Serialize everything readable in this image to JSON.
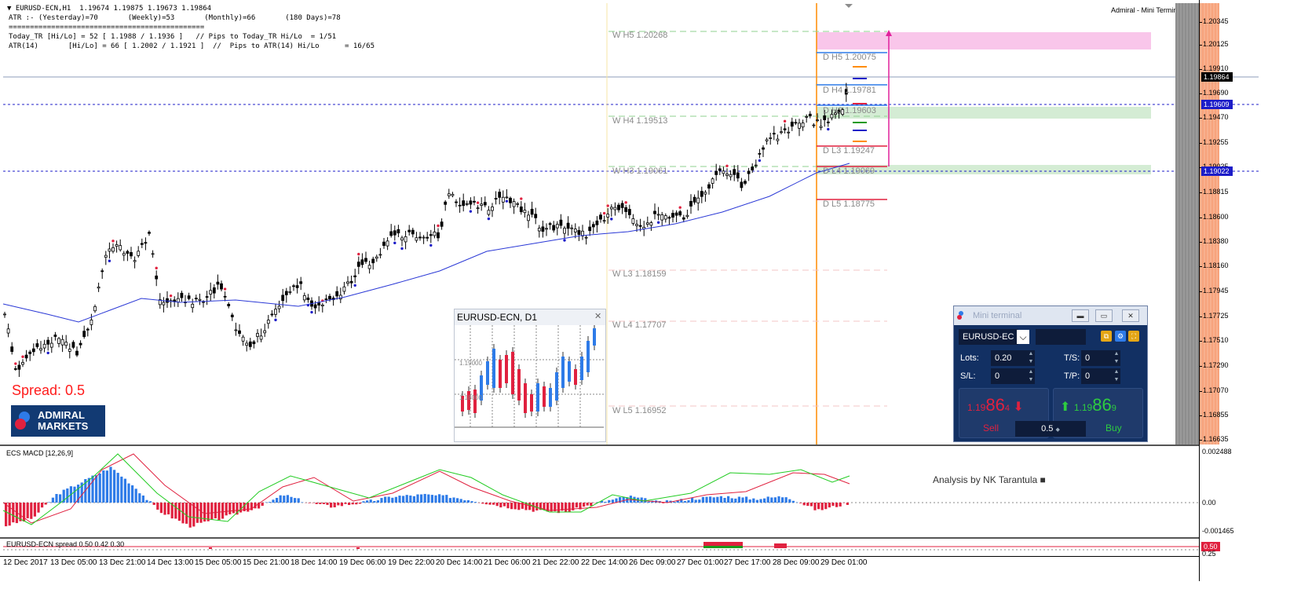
{
  "header": {
    "line1": "EURUSD-ECN,H1  1.19674 1.19875 1.19673 1.19864",
    "line2": "ATR :- (Yesterday)=70       (Weekly)=53       (Monthly)=66       (180 Days)=78",
    "line3": "==============================================",
    "line4": "Today_TR [Hi/Lo] = 52 [ 1.1988 / 1.1936 ]   // Pips to Today_TR Hi/Lo  = 1/51",
    "line5": "ATR(14)       [Hi/Lo] = 66 [ 1.2002 / 1.1921 ]  //  Pips to ATR(14) Hi/Lo      = 16/65"
  },
  "top_right_label": "Admiral - Mini Terminal",
  "spread_label": "Spread:  0.5",
  "logo": {
    "line1": "ADMIRAL",
    "line2": "MARKETS"
  },
  "levels": {
    "w_h5": "W  H5 1.20268",
    "w_h4": "W  H4 1.19513",
    "w_h3": "W  H3 1.19061",
    "w_l3": "W  L3 1.18159",
    "w_l4": "W  L4 1.17707",
    "w_l5": "W  L5 1.16952",
    "d_h5": "D  H5 1.20075",
    "d_h4": "D  H4 1.19781",
    "d_h3": "D  H3 1.19603",
    "d_l3": "D  L3 1.19247",
    "d_l4": "D  L4 1.19069",
    "d_l5": "D  L5 1.18775"
  },
  "price_axis": [
    "1.20345",
    "1.20125",
    "1.19910",
    "1.19690",
    "1.19470",
    "1.19255",
    "1.19035",
    "1.18815",
    "1.18600",
    "1.18380",
    "1.18160",
    "1.17945",
    "1.17725",
    "1.17510",
    "1.17290",
    "1.17070",
    "1.16855",
    "1.16635"
  ],
  "price_tags": {
    "current": "1.19864",
    "blue1": "1.19609",
    "blue2": "1.19022"
  },
  "d1_window": {
    "title": "EURUSD-ECN, D1",
    "close": "✕",
    "grid_label1": "1.19000",
    "grid_label2": "1.18000"
  },
  "macd": {
    "title": "ECS MACD [12,26,9]",
    "scale_top": "0.002488",
    "scale_mid": "0.00",
    "scale_bot": "-0.001465",
    "analysis_text": "Analysis by NK Tarantula ■"
  },
  "spread_indicator": {
    "title": "EURUSD-ECN spread 0.50 0.42 0.30",
    "tag": "0.50",
    "scale": "0.25"
  },
  "time_axis": [
    "12 Dec 2017",
    "13 Dec 05:00",
    "13 Dec 21:00",
    "14 Dec 13:00",
    "15 Dec 05:00",
    "15 Dec 21:00",
    "18 Dec 14:00",
    "19 Dec 06:00",
    "19 Dec 22:00",
    "20 Dec 14:00",
    "21 Dec 06:00",
    "21 Dec 22:00",
    "22 Dec 14:00",
    "26 Dec 09:00",
    "27 Dec 01:00",
    "27 Dec 17:00",
    "28 Dec 09:00",
    "29 Dec 01:00"
  ],
  "mini_terminal": {
    "title": "Mini terminal",
    "symbol": "EURUSD-EC",
    "lots_label": "Lots:",
    "lots_value": "0.20",
    "ts_label": "T/S:",
    "ts_value": "0",
    "sl_label": "S/L:",
    "sl_value": "0",
    "tp_label": "T/P:",
    "tp_value": "0",
    "sell_small": "1.19",
    "sell_big": "86",
    "sell_last": "4",
    "buy_small": "1.19",
    "buy_big": "86",
    "buy_last": "9",
    "sell_label": "Sell",
    "buy_label": "Buy",
    "spread_value": "0.5"
  },
  "colors": {
    "up": "#2e7be8",
    "down": "#e0213f",
    "ma": "#2a38d6",
    "orange": "#ff8c00",
    "pink": "#f9c6ea",
    "green_zone": "#cfe9cf"
  }
}
